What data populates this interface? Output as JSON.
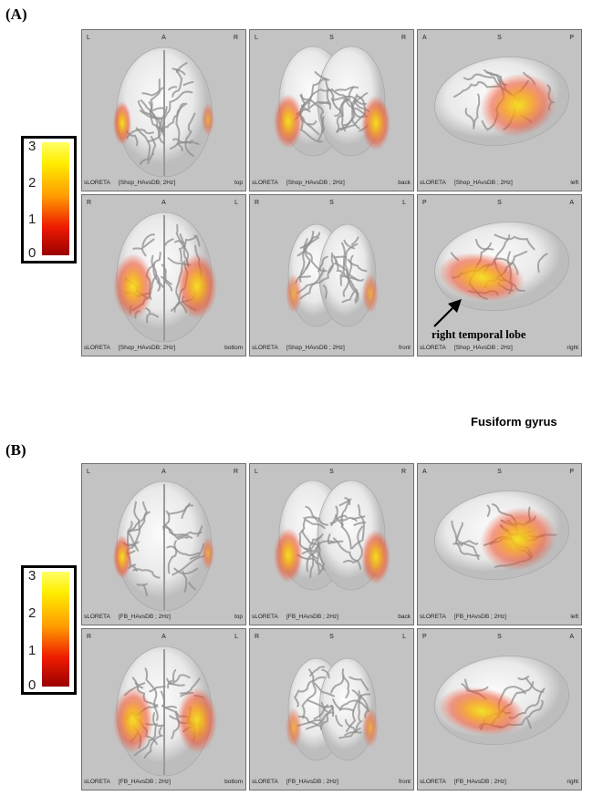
{
  "panels": [
    {
      "label": "(A)",
      "cells": [
        {
          "o": [
            "L",
            "A",
            "R"
          ],
          "method": "sLORETA",
          "condition": "[Shop_HAvsDB; 2Hz]",
          "view": "top"
        },
        {
          "o": [
            "L",
            "S",
            "R"
          ],
          "method": "sLORETA",
          "condition": "[Shop_HAvsDB ; 2Hz]",
          "view": "back"
        },
        {
          "o": [
            "A",
            "S",
            "P"
          ],
          "method": "sLORETA",
          "condition": "[Shop_HAvsDB ; 2Hz]",
          "view": "left"
        },
        {
          "o": [
            "R",
            "A",
            "L"
          ],
          "method": "sLORETA",
          "condition": "[Shop_HAvsDB; 2Hz]",
          "view": "bottom"
        },
        {
          "o": [
            "R",
            "S",
            "L"
          ],
          "method": "sLORETA",
          "condition": "[Shop_HAvsDB ; 2Hz]",
          "view": "front"
        },
        {
          "o": [
            "P",
            "S",
            "A"
          ],
          "method": "sLORETA",
          "condition": "[Shop_HAvsDB ; 2Hz]",
          "view": "right"
        }
      ]
    },
    {
      "label": "(B)",
      "cells": [
        {
          "o": [
            "L",
            "A",
            "R"
          ],
          "method": "sLORETA",
          "condition": "[FB_HAvsDB ; 2Hz]",
          "view": "top"
        },
        {
          "o": [
            "L",
            "S",
            "R"
          ],
          "method": "sLORETA",
          "condition": "[FB_HAvsDB ; 2Hz]",
          "view": "back"
        },
        {
          "o": [
            "A",
            "S",
            "P"
          ],
          "method": "sLORETA",
          "condition": "[FB_HAvsDB ; 2Hz]",
          "view": "left"
        },
        {
          "o": [
            "R",
            "A",
            "L"
          ],
          "method": "sLORETA",
          "condition": "[FB_HAvsDB ; 2Hz]",
          "view": "bottom"
        },
        {
          "o": [
            "R",
            "S",
            "L"
          ],
          "method": "sLORETA",
          "condition": "[FB_HAvsDB ; 2Hz]",
          "view": "front"
        },
        {
          "o": [
            "P",
            "S",
            "A"
          ],
          "method": "sLORETA",
          "condition": "[FB_HAvsDB ; 2Hz]",
          "view": "right"
        }
      ]
    }
  ],
  "colorbar": {
    "ticks": [
      "3",
      "2",
      "1",
      "0"
    ],
    "colors": [
      "#ffff66",
      "#ffee00",
      "#ff9a00",
      "#ee1b00",
      "#9a0000"
    ]
  },
  "annotation": "right temporal lobe",
  "roi_label": "Fusiform gyrus"
}
